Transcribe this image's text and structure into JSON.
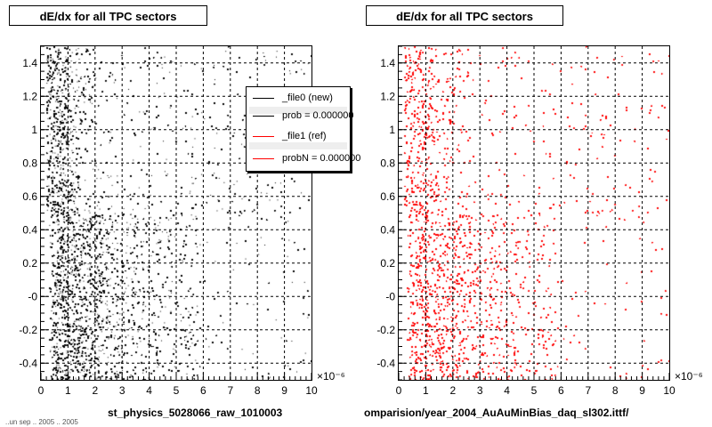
{
  "chart_data": [
    {
      "type": "scatter",
      "title": "dE/dx for all TPC sectors",
      "caption": "st_physics_5028066_raw_1010003",
      "series": [
        {
          "color": "#000000",
          "n_points": 68000
        }
      ],
      "xlim": [
        0,
        1e-05
      ],
      "ylim": [
        -0.5,
        1.5
      ],
      "x_tick_labels": [
        "0",
        "1",
        "2",
        "3",
        "4",
        "5",
        "6",
        "7",
        "8",
        "9",
        "10"
      ],
      "x_exponent_label": "×10⁻⁶",
      "y_tick_labels": [
        "-0.4",
        "-0.2",
        "-0",
        "0.2",
        "0.4",
        "0.6",
        "0.8",
        "1",
        "1.2",
        "1.4"
      ],
      "y_ticks": [
        -0.4,
        -0.2,
        0,
        0.2,
        0.4,
        0.6,
        0.8,
        1.0,
        1.2,
        1.4
      ],
      "grid": true,
      "legend": {
        "placement": "top-right",
        "entries": [
          {
            "label": "_file0 (new)",
            "color": "#000000"
          },
          {
            "label": "prob = 0.000000",
            "color": "#000000"
          },
          {
            "label": "_file1 (ref)",
            "color": "#ff0000"
          },
          {
            "label": "probN = 0.000000",
            "color": "#ff0000"
          }
        ]
      }
    },
    {
      "type": "scatter",
      "title": "dE/dx for all TPC sectors",
      "caption": "omparision/year_2004_AuAuMinBias_daq_sl302.ittf/",
      "series": [
        {
          "color": "#ff0000",
          "n_points": 68000
        }
      ],
      "xlim": [
        0,
        1e-05
      ],
      "ylim": [
        -0.5,
        1.5
      ],
      "x_tick_labels": [
        "0",
        "1",
        "2",
        "3",
        "4",
        "5",
        "6",
        "7",
        "8",
        "9",
        "10"
      ],
      "x_exponent_label": "×10⁻⁶",
      "y_tick_labels": [
        "-0.4",
        "-0.2",
        "-0",
        "0.2",
        "0.4",
        "0.6",
        "0.8",
        "1",
        "1.2",
        "1.4"
      ],
      "y_ticks": [
        -0.4,
        -0.2,
        0,
        0.2,
        0.4,
        0.6,
        0.8,
        1.0,
        1.2,
        1.4
      ],
      "grid": true
    }
  ],
  "footer_clipped_text": "..un sep .. 2005 .. 2005"
}
